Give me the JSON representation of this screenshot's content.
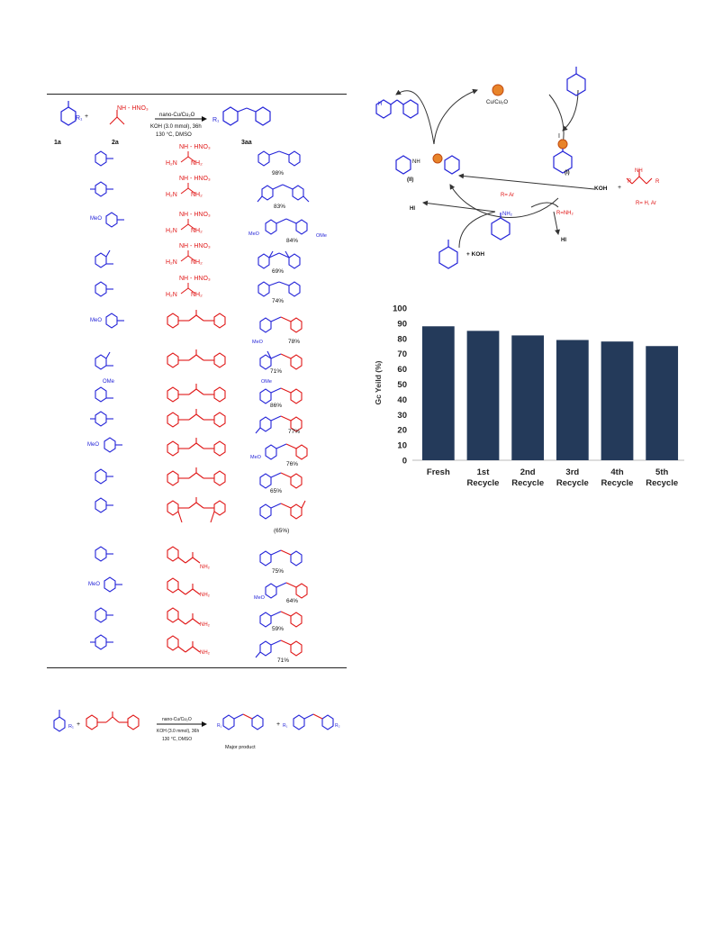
{
  "table": {
    "header": {
      "aryl_label": "R₁",
      "plus": "+",
      "reagent_label": "NH - HNO₃",
      "cond1": "nano-Cu/Cu₂O",
      "cond2": "KOH (3.0 mmol), 36h",
      "cond3": "130 °C, DMSO",
      "product_label": "R₁",
      "id1": "1a",
      "id2": "2a",
      "id3": "3aa"
    },
    "guanidine_text": {
      "top": "NH - HNO₃",
      "left": "H₂N",
      "right": "NH₂"
    },
    "guanidine_rows": [
      {
        "aryl": "",
        "yield": "98%"
      },
      {
        "aryl": "",
        "yield": "83%"
      },
      {
        "aryl": "MeO",
        "yield": "84%",
        "ome": "OMe",
        "meo": "MeO"
      },
      {
        "aryl": "",
        "yield": "69%"
      },
      {
        "aryl": "",
        "yield": "74%"
      }
    ],
    "diphenylguanidine_rows": [
      {
        "aryl": "MeO",
        "yield": "78%",
        "meo": "MeO"
      },
      {
        "aryl": "",
        "yield": "71%"
      },
      {
        "aryl": "OMe",
        "yield": "86%",
        "ome": "OMe"
      },
      {
        "aryl": "",
        "yield": "77%"
      },
      {
        "aryl": "MeO",
        "yield": "76%",
        "meo": "MeO"
      },
      {
        "aryl": "",
        "yield": "65%"
      },
      {
        "aryl": "",
        "yield": "(65%)"
      }
    ],
    "urea_text": {
      "o": "O",
      "nh": "H",
      "nh2": "NH₂"
    },
    "urea_rows": [
      {
        "aryl": "",
        "yield": "75%"
      },
      {
        "aryl": "MeO",
        "yield": "64%",
        "meo": "MeO"
      },
      {
        "aryl": "",
        "yield": "59%"
      },
      {
        "aryl": "",
        "yield": "71%"
      }
    ],
    "guan_nh": "NH",
    "h": "H"
  },
  "scheme_bottom": {
    "cond1": "nano-Cu/Cu₂O",
    "cond2": "KOH (3.0 mmol), 36h",
    "cond3": "130 °C, DMSO",
    "major": "Major product",
    "plus": "+",
    "r1": "R₁",
    "r2": "R₂"
  },
  "cycle": {
    "catalyst": "Cu/Cu₂O",
    "I": "I",
    "II": "(II)",
    "I_label": "(I)",
    "r_ar": "R= Ar",
    "r_nh2": "R=NH₂",
    "koh": "KOH",
    "plus": "+",
    "r_h_ar": "R= H, Ar",
    "hi1": "HI",
    "hi2": "HI",
    "plus_koh": "+ KOH",
    "nh": "NH",
    "nh2": "NH₂",
    "guan_nh": "NH",
    "guan_r": "R",
    "guan_h": "H"
  },
  "chart_data": {
    "type": "bar",
    "title": "",
    "xlabel": "",
    "ylabel": "Gc Yeild (%)",
    "categories": [
      "Fresh",
      "1st Recycle",
      "2nd Recycle",
      "3rd Recycle",
      "4th Recycle",
      "5th Recycle"
    ],
    "category_lines": [
      [
        "Fresh",
        ""
      ],
      [
        "1st",
        "Recycle"
      ],
      [
        "2nd",
        "Recycle"
      ],
      [
        "3rd",
        "Recycle"
      ],
      [
        "4th",
        "Recycle"
      ],
      [
        "5th",
        "Recycle"
      ]
    ],
    "values": [
      88,
      85,
      82,
      79,
      78,
      75
    ],
    "ylim": [
      0,
      100
    ],
    "yticks": [
      0,
      10,
      20,
      30,
      40,
      50,
      60,
      70,
      80,
      90,
      100
    ],
    "grid": false,
    "bar_color": "#243a5a"
  }
}
